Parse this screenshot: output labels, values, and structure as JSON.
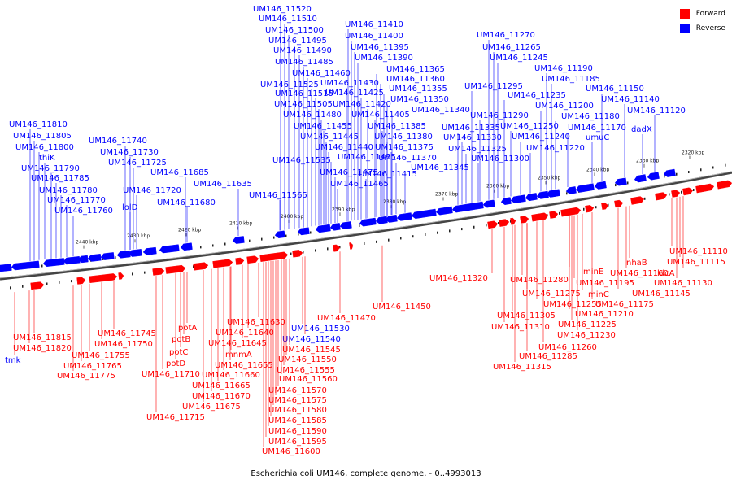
{
  "colors": {
    "forward": "#ff0000",
    "reverse": "#0000ff",
    "axis": "#808080"
  },
  "legend": [
    {
      "label": "Forward",
      "color": "#ff0000"
    },
    {
      "label": "Reverse",
      "color": "#0000ff"
    }
  ],
  "caption": "Escherichia coli UM146, complete genome. - 0..4993013",
  "ticks": [
    "2320 kbp",
    "2330 kbp",
    "2340 kbp",
    "2350 kbp",
    "2360 kbp",
    "2370 kbp",
    "2380 kbp",
    "2390 kbp",
    "2400 kbp",
    "2410 kbp",
    "2420 kbp",
    "2430 kbp",
    "2440 kbp"
  ],
  "reverse_labels": [
    "UM146_11520",
    "UM146_11510",
    "UM146_11500",
    "UM146_11495",
    "UM146_11490",
    "UM146_11485",
    "UM146_11460",
    "UM146_11525",
    "UM146_11515",
    "UM146_11505",
    "UM146_11480",
    "UM146_11455",
    "UM146_11445",
    "UM146_11440",
    "UM146_11435",
    "UM146_11535",
    "UM146_11475",
    "UM146_11465",
    "UM146_11565",
    "UM146_11410",
    "UM146_11400",
    "UM146_11395",
    "UM146_11390",
    "UM146_11365",
    "UM146_11360",
    "UM146_11355",
    "UM146_11350",
    "UM146_11340",
    "UM146_11430",
    "UM146_11425",
    "UM146_11420",
    "UM146_11405",
    "UM146_11385",
    "UM146_11380",
    "UM146_11375",
    "UM146_11370",
    "UM146_11415",
    "UM146_11345",
    "UM146_11270",
    "UM146_11265",
    "UM146_11245",
    "UM146_11295",
    "UM146_11235",
    "UM146_11290",
    "UM146_11250",
    "UM146_11240",
    "UM146_11220",
    "UM146_11335",
    "UM146_11330",
    "UM146_11325",
    "UM146_11300",
    "UM146_11190",
    "UM146_11185",
    "UM146_11150",
    "UM146_11140",
    "UM146_11120",
    "UM146_11200",
    "UM146_11180",
    "UM146_11170",
    "umuC",
    "dadX",
    "UM146_11810",
    "UM146_11805",
    "UM146_11800",
    "thiK",
    "UM146_11790",
    "UM146_11785",
    "UM146_11780",
    "UM146_11770",
    "UM146_11760",
    "UM146_11740",
    "UM146_11730",
    "UM146_11725",
    "UM146_11720",
    "lolD",
    "UM146_11685",
    "UM146_11680",
    "UM146_11635",
    "tmk",
    "UM146_11530",
    "UM146_11540"
  ],
  "forward_labels": [
    "UM146_11320",
    "UM146_11450",
    "UM146_11470",
    "UM146_11630",
    "UM146_11640",
    "UM146_11645",
    "UM146_11655",
    "mnmA",
    "UM146_11660",
    "UM146_11665",
    "UM146_11670",
    "UM146_11675",
    "potA",
    "potB",
    "potC",
    "potD",
    "UM146_11710",
    "UM146_11715",
    "UM146_11745",
    "UM146_11750",
    "UM146_11755",
    "UM146_11765",
    "UM146_11775",
    "UM146_11815",
    "UM146_11820",
    "UM146_11545",
    "UM146_11550",
    "UM146_11555",
    "UM146_11560",
    "UM146_11570",
    "UM146_11575",
    "UM146_11580",
    "UM146_11585",
    "UM146_11590",
    "UM146_11595",
    "UM146_11600",
    "UM146_11280",
    "UM146_11275",
    "UM146_11255",
    "UM146_11305",
    "UM146_11310",
    "UM146_11315",
    "UM146_11285",
    "UM146_11260",
    "minE",
    "minC",
    "UM146_11195",
    "UM146_11210",
    "UM146_11225",
    "UM146_11230",
    "UM146_11175",
    "UM146_11145",
    "UM146_11160",
    "nhaB",
    "UM146_11110",
    "UM146_11115",
    "UM146_11130",
    "ldcA"
  ]
}
